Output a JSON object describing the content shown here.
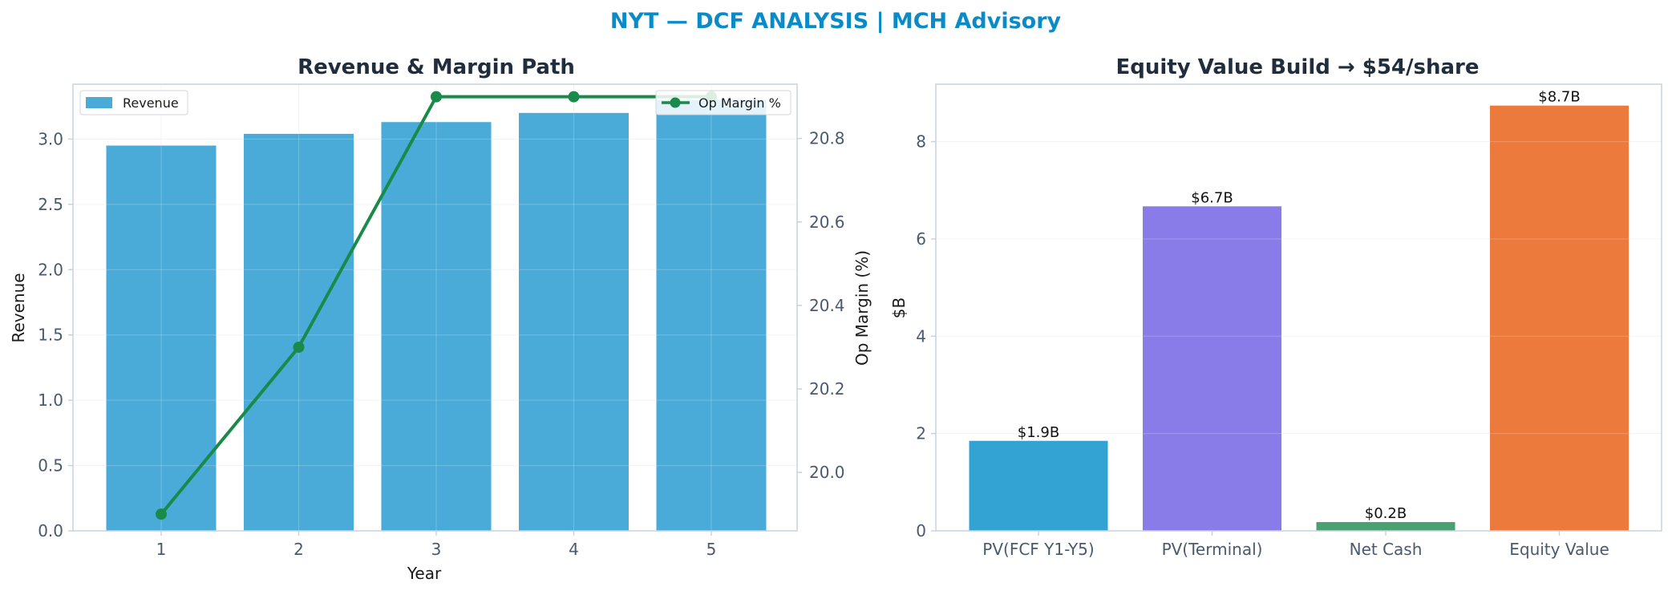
{
  "suptitle": "NYT — DCF ANALYSIS | MCH Advisory",
  "colors": {
    "title": "#0a8bc8",
    "revenue_bar": "#4aabd8",
    "margin_line": "#1a8a4a",
    "spine": "#c8d2de",
    "grid": "#eef1f5"
  },
  "chart_data": [
    {
      "type": "bar",
      "title": "Revenue & Margin Path",
      "xlabel": "Year",
      "ylabel": "Revenue",
      "y2label": "Op Margin (%)",
      "categories": [
        "1",
        "2",
        "3",
        "4",
        "5"
      ],
      "series": [
        {
          "name": "Revenue",
          "type": "bar",
          "axis": "left",
          "values": [
            2.95,
            3.04,
            3.13,
            3.2,
            3.3
          ]
        },
        {
          "name": "Op Margin %",
          "type": "line",
          "axis": "right",
          "values": [
            19.9,
            20.3,
            20.9,
            20.9,
            20.9
          ]
        }
      ],
      "ylim": [
        0,
        3.42
      ],
      "yticks": [
        "0.0",
        "0.5",
        "1.0",
        "1.5",
        "2.0",
        "2.5",
        "3.0"
      ],
      "y2lim": [
        19.86,
        20.93
      ],
      "y2ticks": [
        "20.0",
        "20.2",
        "20.4",
        "20.6",
        "20.8"
      ],
      "grid": true,
      "legend": [
        "upper-left",
        "upper-right"
      ]
    },
    {
      "type": "bar",
      "title": "Equity Value Build → $54/share",
      "xlabel": "",
      "ylabel": "$B",
      "categories": [
        "PV(FCF Y1-Y5)",
        "PV(Terminal)",
        "Net Cash",
        "Equity Value"
      ],
      "values": [
        1.85,
        6.67,
        0.18,
        8.74
      ],
      "labels": [
        "$1.9B",
        "$6.7B",
        "$0.2B",
        "$8.7B"
      ],
      "bar_colors": [
        "#33a3d4",
        "#8a7ce8",
        "#4aa070",
        "#ec7a3c"
      ],
      "ylim": [
        0,
        9.18
      ],
      "yticks": [
        "0",
        "2",
        "4",
        "6",
        "8"
      ],
      "grid": true
    }
  ]
}
